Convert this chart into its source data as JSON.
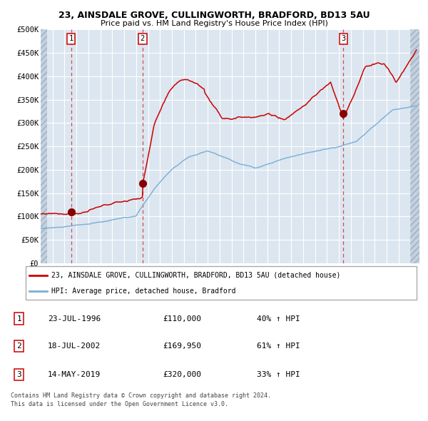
{
  "title1": "23, AINSDALE GROVE, CULLINGWORTH, BRADFORD, BD13 5AU",
  "title2": "Price paid vs. HM Land Registry's House Price Index (HPI)",
  "ylim": [
    0,
    500000
  ],
  "yticks": [
    0,
    50000,
    100000,
    150000,
    200000,
    250000,
    300000,
    350000,
    400000,
    450000,
    500000
  ],
  "ytick_labels": [
    "£0",
    "£50K",
    "£100K",
    "£150K",
    "£200K",
    "£250K",
    "£300K",
    "£350K",
    "£400K",
    "£450K",
    "£500K"
  ],
  "xlim_start": 1994.0,
  "xlim_end": 2025.75,
  "background_color": "#ffffff",
  "plot_bg_color": "#dce6f0",
  "grid_color": "#ffffff",
  "red_line_color": "#cc0000",
  "blue_line_color": "#7aadd4",
  "marker_color": "#880000",
  "purchase1_x": 1996.55,
  "purchase1_y": 110000,
  "purchase2_x": 2002.54,
  "purchase2_y": 169950,
  "purchase3_x": 2019.37,
  "purchase3_y": 320000,
  "legend_line1": "23, AINSDALE GROVE, CULLINGWORTH, BRADFORD, BD13 5AU (detached house)",
  "legend_line2": "HPI: Average price, detached house, Bradford",
  "table_rows": [
    {
      "num": "1",
      "date": "23-JUL-1996",
      "price": "£110,000",
      "change": "40% ↑ HPI"
    },
    {
      "num": "2",
      "date": "18-JUL-2002",
      "price": "£169,950",
      "change": "61% ↑ HPI"
    },
    {
      "num": "3",
      "date": "14-MAY-2019",
      "price": "£320,000",
      "change": "33% ↑ HPI"
    }
  ],
  "footnote1": "Contains HM Land Registry data © Crown copyright and database right 2024.",
  "footnote2": "This data is licensed under the Open Government Licence v3.0."
}
